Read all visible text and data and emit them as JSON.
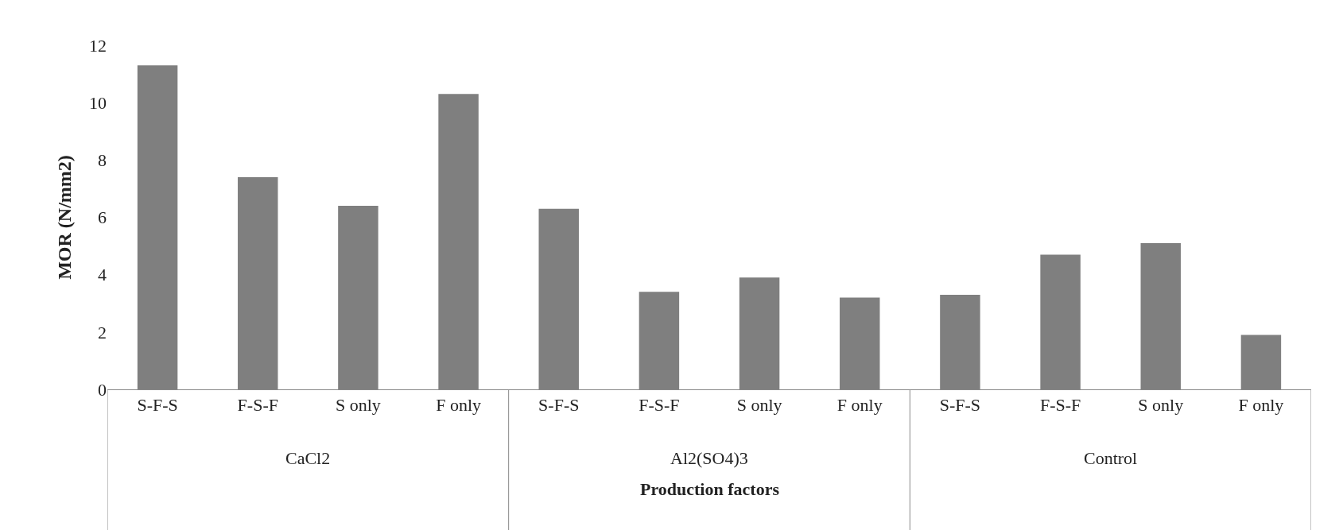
{
  "chart_data": {
    "type": "bar",
    "xlabel": "Production factors",
    "ylabel": "MOR (N/mm2)",
    "categories": [
      "S-F-S",
      "F-S-F",
      "S only",
      "F only",
      "S-F-S",
      "F-S-F",
      "S only",
      "F only",
      "S-F-S",
      "F-S-F",
      "S only",
      "F only"
    ],
    "values": [
      11.3,
      7.4,
      6.4,
      10.3,
      6.3,
      3.4,
      3.9,
      3.2,
      3.3,
      4.7,
      5.1,
      1.9
    ],
    "color": "#7f7f7f",
    "annotations": [
      "CaCl2",
      "Al2(SO4)3",
      "Control"
    ],
    "ylim": [
      0,
      12
    ],
    "yticks": [
      0,
      2,
      4,
      6,
      8,
      10,
      12
    ]
  }
}
